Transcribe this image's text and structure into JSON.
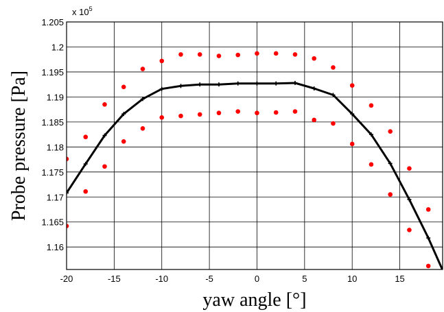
{
  "chart_data": {
    "type": "scatter",
    "xlabel": "yaw angle [°]",
    "ylabel": "Probe pressure [Pa]",
    "exponent_label": "x 10",
    "exponent_power": "5",
    "xlim": [
      -20,
      19.5
    ],
    "ylim": [
      1.1555,
      1.205
    ],
    "x_ticks": [
      -20,
      -15,
      -10,
      -5,
      0,
      5,
      10,
      15
    ],
    "x_tick_labels": [
      "-20",
      "-15",
      "-10",
      "-5",
      "0",
      "5",
      "10",
      "15"
    ],
    "y_ticks": [
      1.16,
      1.165,
      1.17,
      1.175,
      1.18,
      1.185,
      1.19,
      1.195,
      1.2,
      1.205
    ],
    "y_tick_labels": [
      "1.16",
      "1.165",
      "1.17",
      "1.175",
      "1.18",
      "1.185",
      "1.19",
      "1.195",
      "1.2",
      "1.205"
    ],
    "grid": true,
    "series": [
      {
        "kind": "line",
        "color": "#000000",
        "x": [
          -20,
          -18,
          -16,
          -14,
          -12,
          -10,
          -8,
          -6,
          -4,
          -2,
          0,
          2,
          4,
          6,
          8,
          10,
          12,
          14,
          16,
          18,
          19.7
        ],
        "y": [
          1.1708,
          1.1766,
          1.1823,
          1.1866,
          1.1896,
          1.1916,
          1.1922,
          1.1925,
          1.1925,
          1.1927,
          1.1927,
          1.1927,
          1.1928,
          1.1917,
          1.1904,
          1.1866,
          1.1825,
          1.1767,
          1.1695,
          1.1618,
          1.1545
        ]
      },
      {
        "kind": "points",
        "color": "#ff0000",
        "x": [
          -20,
          -18,
          -16,
          -14,
          -12,
          -10,
          -8,
          -6,
          -4,
          -2,
          0,
          2,
          4,
          6,
          8,
          10,
          12,
          14,
          16,
          18
        ],
        "y": [
          1.1776,
          1.182,
          1.1885,
          1.192,
          1.1956,
          1.1972,
          1.1985,
          1.1985,
          1.1982,
          1.1984,
          1.1987,
          1.1987,
          1.1985,
          1.1977,
          1.1959,
          1.1923,
          1.1883,
          1.1831,
          1.1757,
          1.1675
        ]
      },
      {
        "kind": "points",
        "color": "#ff0000",
        "x": [
          -20,
          -18,
          -16,
          -14,
          -12,
          -10,
          -8,
          -6,
          -4,
          -2,
          0,
          2,
          4,
          6,
          8,
          10,
          12,
          14,
          16,
          18
        ],
        "y": [
          1.1642,
          1.1711,
          1.1761,
          1.1811,
          1.1837,
          1.1859,
          1.1862,
          1.1865,
          1.1868,
          1.1871,
          1.1868,
          1.1869,
          1.1871,
          1.1854,
          1.1847,
          1.1806,
          1.1765,
          1.1705,
          1.1634,
          1.1562
        ]
      }
    ]
  }
}
